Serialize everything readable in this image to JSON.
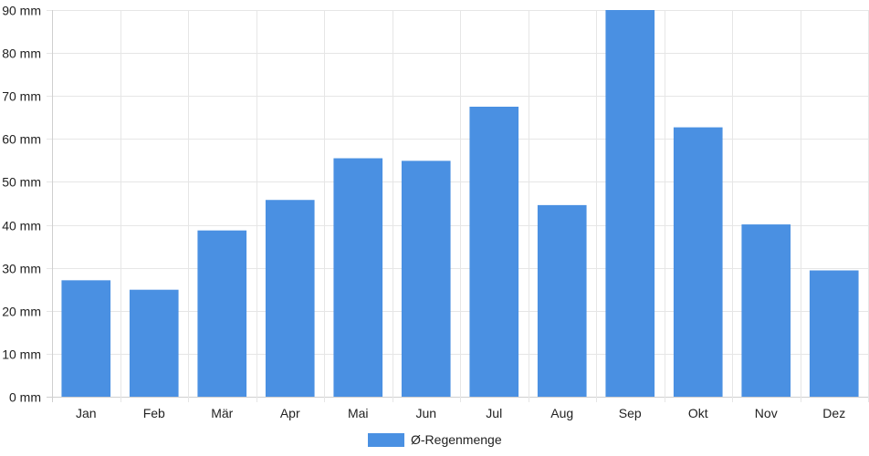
{
  "chart_data": {
    "type": "bar",
    "categories": [
      "Jan",
      "Feb",
      "Mär",
      "Apr",
      "Mai",
      "Jun",
      "Jul",
      "Aug",
      "Sep",
      "Okt",
      "Nov",
      "Dez"
    ],
    "series": [
      {
        "name": "Ø-Regenmenge",
        "values": [
          27.1,
          24.9,
          38.7,
          45.8,
          55.5,
          54.9,
          67.5,
          44.6,
          90.0,
          62.7,
          40.1,
          29.4
        ],
        "color": "#4a90e2"
      }
    ],
    "yticks": [
      "0 mm",
      "10 mm",
      "20 mm",
      "30 mm",
      "40 mm",
      "50 mm",
      "60 mm",
      "70 mm",
      "80 mm",
      "90 mm"
    ],
    "ylim": [
      0,
      90
    ],
    "grid": true,
    "legend_position": "bottom-center"
  }
}
